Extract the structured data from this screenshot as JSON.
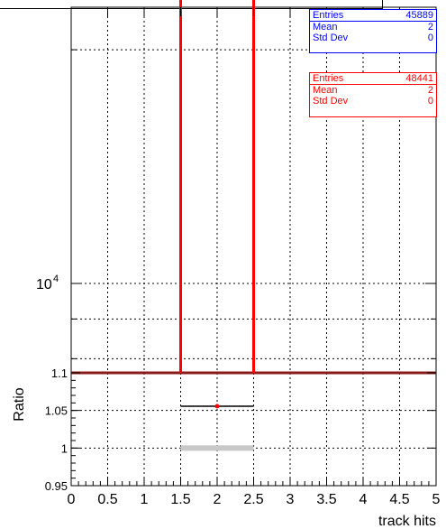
{
  "colors": {
    "blue": "#0000ff",
    "red": "#ff0000",
    "dark_red": "#8b1a1a",
    "grey_band": "#c8c8c8"
  },
  "stat_blue": {
    "entries_label": "Entries",
    "entries": "45889",
    "mean_label": "Mean",
    "mean": "2",
    "std_label": "Std Dev",
    "std": "0"
  },
  "stat_red": {
    "entries_label": "Entries",
    "entries": "48441",
    "mean_label": "Mean",
    "mean": "2",
    "std_label": "Std Dev",
    "std": "0"
  },
  "chart_data": {
    "type": "bar",
    "upper_panel": {
      "y_scale": "log",
      "y_tick_label": "10^4",
      "y_tick_value": 10000,
      "x_range": [
        0,
        5
      ],
      "series": [
        {
          "color": "#0000ff",
          "bin": [
            1.5,
            2.5
          ],
          "value": 45889
        },
        {
          "color": "#ff0000",
          "bin": [
            1.5,
            2.5
          ],
          "value": 48441
        }
      ],
      "grid": true
    },
    "lower_panel": {
      "ylabel": "Ratio",
      "y_ticks": [
        "0.95",
        "1",
        "1.05",
        "1.1"
      ],
      "y_range": [
        0.95,
        1.1
      ],
      "ratio_point": {
        "x": 2,
        "y": 1.0556,
        "xerr": [
          1.5,
          2.5
        ]
      },
      "unit_band": {
        "x": [
          1.5,
          2.5
        ],
        "y": 1.0
      },
      "grid": true
    },
    "x_ticks": [
      "0",
      "0.5",
      "1",
      "1.5",
      "2",
      "2.5",
      "3",
      "3.5",
      "4",
      "4.5",
      "5"
    ],
    "xlabel": "track hits"
  }
}
